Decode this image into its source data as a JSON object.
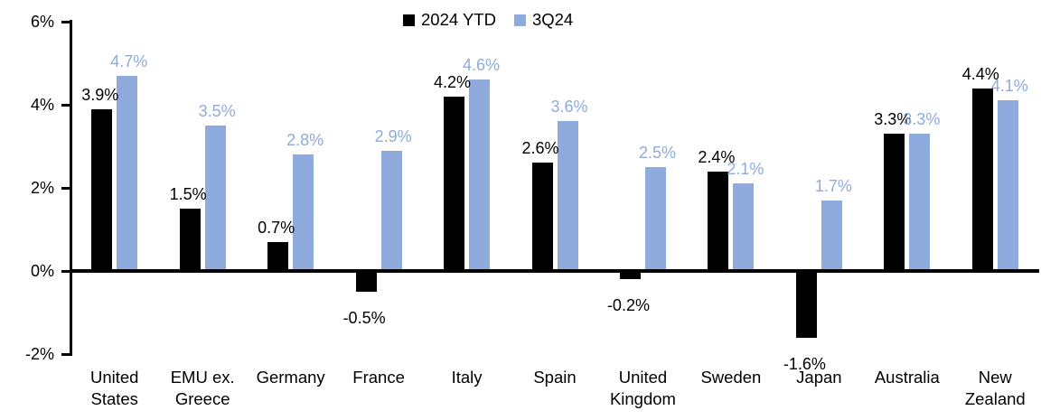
{
  "chart_data": {
    "type": "bar",
    "title": "",
    "categories": [
      "United States",
      "EMU ex. Greece",
      "Germany",
      "France",
      "Italy",
      "Spain",
      "United Kingdom",
      "Sweden",
      "Japan",
      "Australia",
      "New Zealand"
    ],
    "series": [
      {
        "name": "2024 YTD",
        "color": "#000000",
        "values": [
          3.9,
          1.5,
          0.7,
          -0.5,
          4.2,
          2.6,
          -0.2,
          2.4,
          -1.6,
          3.3,
          4.4
        ]
      },
      {
        "name": "3Q24",
        "color": "#8FAADC",
        "values": [
          4.7,
          3.5,
          2.8,
          2.9,
          4.6,
          3.6,
          2.5,
          2.1,
          1.7,
          3.3,
          4.1
        ]
      }
    ],
    "data_labels": {
      "series_0": [
        "3.9%",
        "1.5%",
        "0.7%",
        "-0.5%",
        "4.2%",
        "2.6%",
        "-0.2%",
        "2.4%",
        "-1.6%",
        "3.3%",
        "4.4%"
      ],
      "series_1": [
        "4.7%",
        "3.5%",
        "2.8%",
        "2.9%",
        "4.6%",
        "3.6%",
        "2.5%",
        "2.1%",
        "1.7%",
        "3.3%",
        "4.1%"
      ]
    },
    "xlabel": "",
    "ylabel": "",
    "ylim": [
      -2,
      6
    ],
    "yticks": [
      6,
      4,
      2,
      0,
      -2
    ],
    "ytick_labels": [
      "6%",
      "4%",
      "2%",
      "0%",
      "-2%"
    ],
    "ytick_suffix": "%",
    "data_label_suffix": "%",
    "legend_position": "top-center",
    "grid": false,
    "axis_color": "#000000",
    "background_color": "#ffffff"
  }
}
